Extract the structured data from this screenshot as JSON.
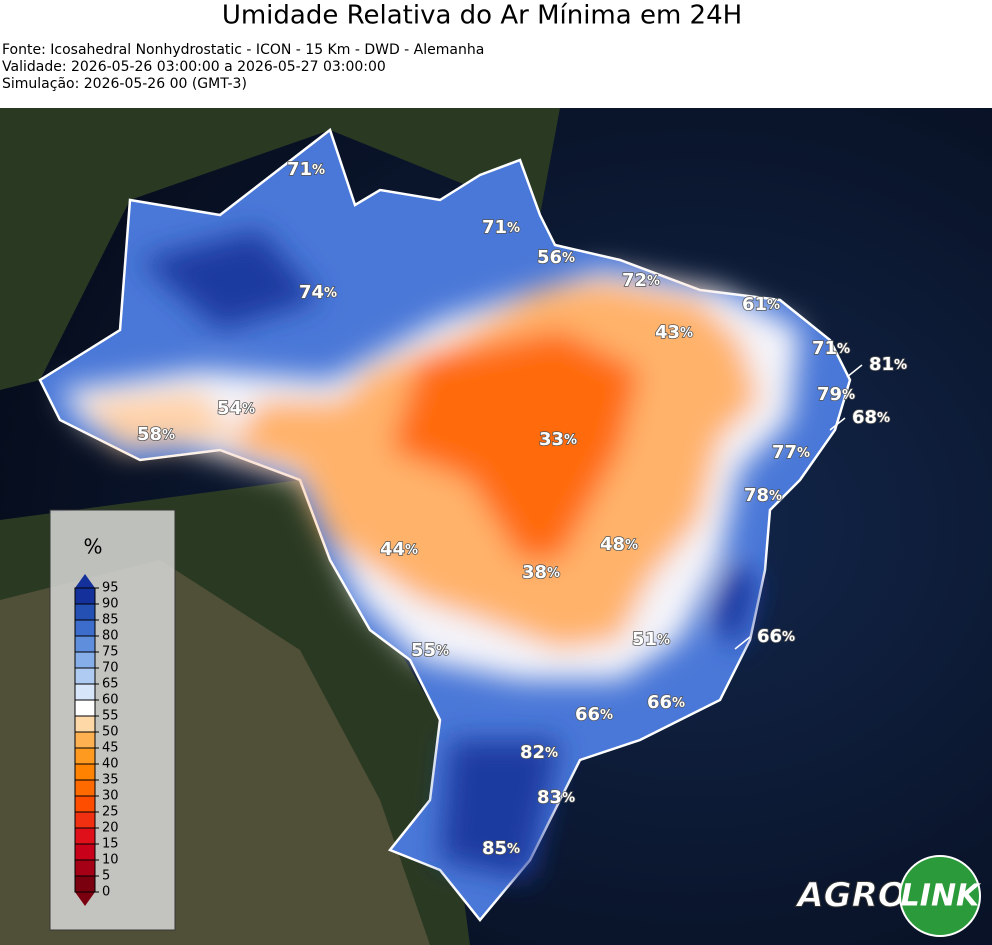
{
  "header": {
    "title": "Umidade Relativa do Ar Mínima em 24H",
    "lines": [
      "Fonte: Icosahedral Nonhydrostatic - ICON - 15 Km - DWD - Alemanha",
      "Validade: 2026-05-26 03:00:00 a 2026-05-27 03:00:00",
      "Simulação: 2026-05-26 00 (GMT-3)"
    ]
  },
  "map": {
    "unit": "%",
    "labels": [
      "71",
      "71",
      "56",
      "72",
      "61",
      "43",
      "71",
      "81",
      "79",
      "68",
      "74",
      "54",
      "58",
      "33",
      "77",
      "78",
      "44",
      "48",
      "38",
      "51",
      "66",
      "55",
      "66",
      "66",
      "82",
      "83",
      "85"
    ]
  },
  "colorbar": {
    "title": "%",
    "ticks": [
      0,
      5,
      10,
      15,
      20,
      25,
      30,
      35,
      40,
      45,
      50,
      55,
      60,
      65,
      70,
      75,
      80,
      85,
      90,
      95
    ],
    "colors": [
      "#7a0010",
      "#a50015",
      "#c8001a",
      "#e0101a",
      "#f03010",
      "#ff4d00",
      "#ff6a00",
      "#ff8200",
      "#ff9a20",
      "#ffb050",
      "#ffd8a8",
      "#ffffff",
      "#d8e6fa",
      "#b0cbf2",
      "#86aee8",
      "#5f8fdc",
      "#3c6ccc",
      "#2450b4",
      "#14309a"
    ]
  },
  "logo": {
    "left": "AGRO",
    "right": "LINK"
  }
}
